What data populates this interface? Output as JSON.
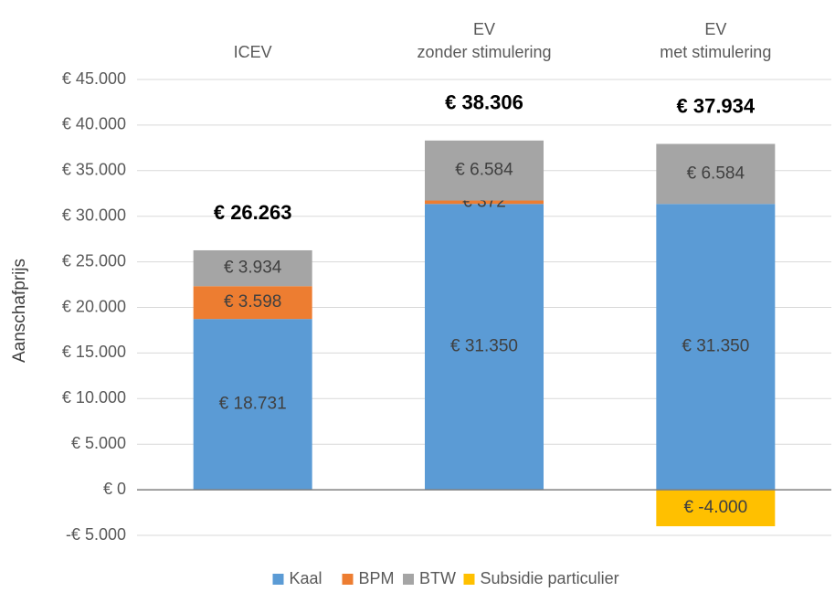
{
  "chart_data": {
    "type": "stacked_bar",
    "categories": [
      "ICEV",
      "EV\nzonder stimulering",
      "EV\nmet stimulering"
    ],
    "series": [
      {
        "name": "Kaal",
        "color": "#5b9bd5",
        "values": [
          18731,
          31350,
          31350
        ],
        "value_labels": [
          "€ 18.731",
          "€ 31.350",
          "€ 31.350"
        ]
      },
      {
        "name": "BPM",
        "color": "#ed7d31",
        "values": [
          3598,
          372,
          null
        ],
        "value_labels": [
          "€ 3.598",
          "€ 372",
          null
        ]
      },
      {
        "name": "BTW",
        "color": "#a5a5a5",
        "values": [
          3934,
          6584,
          6584
        ],
        "value_labels": [
          "€ 3.934",
          "€ 6.584",
          "€ 6.584"
        ]
      },
      {
        "name": "Subsidie particulier",
        "color": "#ffc000",
        "values": [
          null,
          null,
          -4000
        ],
        "value_labels": [
          null,
          null,
          "€ -4.000"
        ]
      }
    ],
    "totals": {
      "values": [
        26263,
        38306,
        37934
      ],
      "value_labels": [
        "€ 26.263",
        "€ 38.306",
        "€ 37.934"
      ]
    },
    "ylabel": "Aanschafprijs",
    "ylim": [
      -5000,
      45000
    ],
    "yticks": [
      {
        "value": -5000,
        "label": "-€ 5.000"
      },
      {
        "value": 0,
        "label": "€ 0"
      },
      {
        "value": 5000,
        "label": "€ 5.000"
      },
      {
        "value": 10000,
        "label": "€ 10.000"
      },
      {
        "value": 15000,
        "label": "€ 15.000"
      },
      {
        "value": 20000,
        "label": "€ 20.000"
      },
      {
        "value": 25000,
        "label": "€ 25.000"
      },
      {
        "value": 30000,
        "label": "€ 30.000"
      },
      {
        "value": 35000,
        "label": "€ 35.000"
      },
      {
        "value": 40000,
        "label": "€ 40.000"
      },
      {
        "value": 45000,
        "label": "€ 45.000"
      }
    ],
    "grid": true,
    "legend": "bottom"
  }
}
